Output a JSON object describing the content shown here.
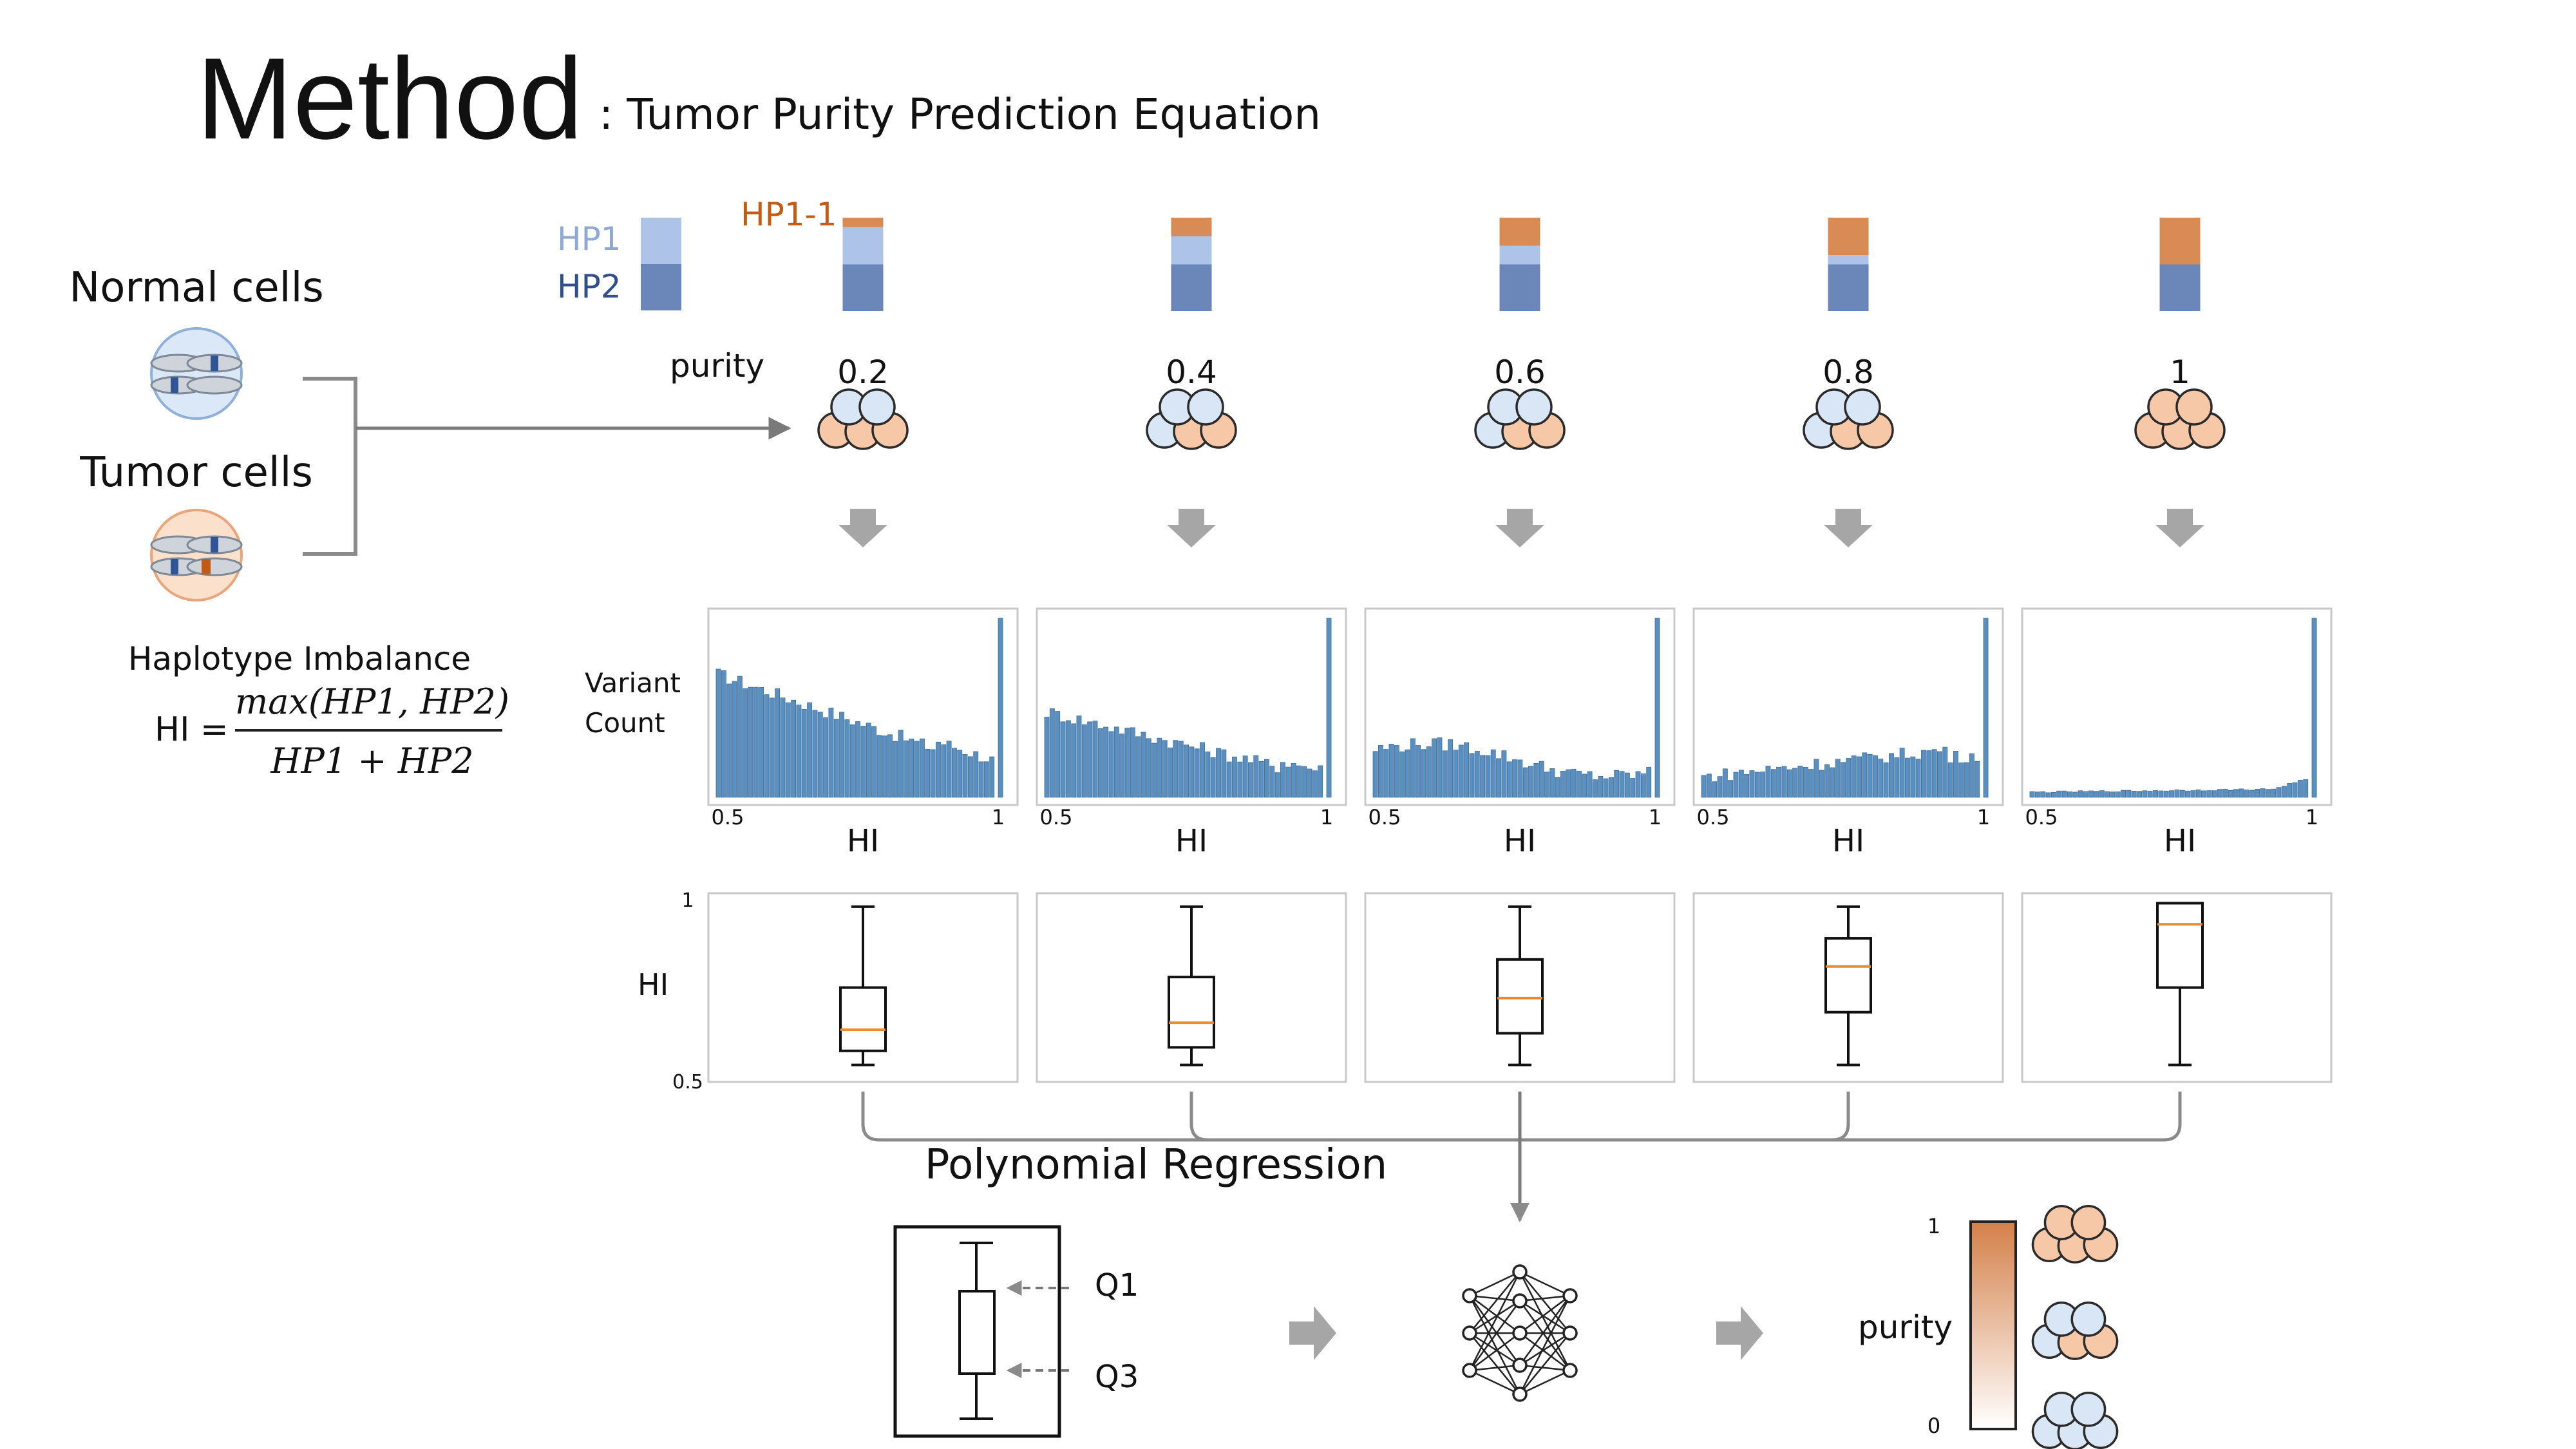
{
  "title": {
    "main": "Method",
    "subtitle": ": Tumor Purity Prediction Equation"
  },
  "left": {
    "normal_label": "Normal cells",
    "tumor_label": "Tumor cells",
    "hi_title": "Haplotype Imbalance",
    "hi_lhs": "HI =",
    "hi_numerator": "max(HP1, HP2)",
    "hi_denominator": "HP1 + HP2"
  },
  "legend": {
    "hp1": "HP1",
    "hp2": "HP2",
    "hp1_1": "HP1-1"
  },
  "colors": {
    "hp1": "#aec3e8",
    "hp2": "#6b86b8",
    "hp1_1": "#d98b55",
    "hist_bar": "#5b8fc0",
    "median": "#f08a24",
    "normal_cell": "#d9e6f5",
    "tumor_cell": "#f6c8a8",
    "arrow_gray": "#a6a6a6"
  },
  "purity_label": "purity",
  "purities": [
    {
      "value": "0.2",
      "v": 0.2,
      "normal": 2,
      "tumor": 3,
      "hp1_1": 0.1,
      "hp1": 0.4
    },
    {
      "value": "0.4",
      "v": 0.4,
      "normal": 3,
      "tumor": 2,
      "hp1_1": 0.2,
      "hp1": 0.3
    },
    {
      "value": "0.6",
      "v": 0.6,
      "normal": 3,
      "tumor": 2,
      "hp1_1": 0.3,
      "hp1": 0.2
    },
    {
      "value": "0.8",
      "v": 0.8,
      "normal": 3,
      "tumor": 2,
      "hp1_1": 0.4,
      "hp1": 0.1
    },
    {
      "value": "1",
      "v": 1.0,
      "normal": 0,
      "tumor": 5,
      "hp1_1": 0.5,
      "hp1": 0.0
    }
  ],
  "histogram": {
    "ylabel_1": "Variant",
    "ylabel_2": "Count",
    "xlabel": "HI",
    "x_min_label": "0.5",
    "x_max_label": "1",
    "xlim": [
      0.5,
      1
    ],
    "bins": 52
  },
  "boxplot": {
    "ylabel": "HI",
    "y_top_label": "1",
    "y_bottom_label": "0.5",
    "ylim": [
      0.5,
      1
    ],
    "stats": [
      {
        "min": 0.53,
        "q1": 0.57,
        "median": 0.63,
        "q3": 0.75,
        "max": 0.98
      },
      {
        "min": 0.53,
        "q1": 0.58,
        "median": 0.65,
        "q3": 0.78,
        "max": 0.98
      },
      {
        "min": 0.53,
        "q1": 0.62,
        "median": 0.72,
        "q3": 0.83,
        "max": 0.98
      },
      {
        "min": 0.53,
        "q1": 0.68,
        "median": 0.81,
        "q3": 0.89,
        "max": 0.98
      },
      {
        "min": 0.53,
        "q1": 0.75,
        "median": 0.93,
        "q3": 0.99,
        "max": 0.99
      }
    ]
  },
  "regression": {
    "label": "Polynomial Regression",
    "q1": "Q1",
    "q3": "Q3"
  },
  "output": {
    "purity_label": "purity",
    "top_label": "1",
    "bottom_label": "0"
  }
}
